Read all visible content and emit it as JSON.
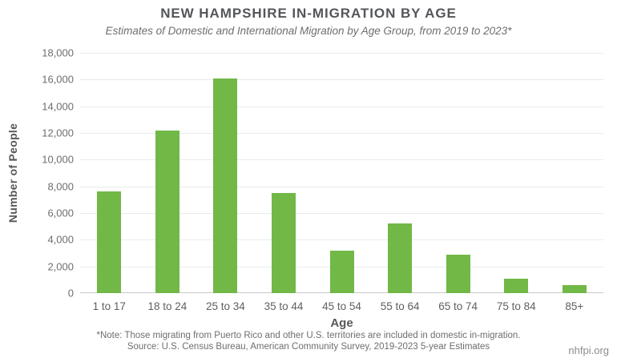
{
  "header": {
    "title": "NEW HAMPSHIRE IN-MIGRATION BY AGE",
    "subtitle": "Estimates of Domestic and International Migration by Age Group, from 2019 to 2023*"
  },
  "chart_data": {
    "type": "bar",
    "title": "NEW HAMPSHIRE IN-MIGRATION BY AGE",
    "subtitle": "Estimates of Domestic and International Migration by Age Group, from 2019 to 2023*",
    "categories": [
      "1 to 17",
      "18 to 24",
      "25 to 34",
      "35 to 44",
      "45 to 54",
      "55 to 64",
      "65 to 74",
      "75 to 84",
      "85+"
    ],
    "values": [
      7600,
      12200,
      16100,
      7500,
      3200,
      5200,
      2900,
      1100,
      620
    ],
    "xlabel": "Age",
    "ylabel": "Number of People",
    "ylim": [
      0,
      18000
    ],
    "ytick_step": 2000,
    "ytick_labels_top_to_bottom": [
      "18,000",
      "16,000",
      "14,000",
      "12,000",
      "10,000",
      "8,000",
      "6,000",
      "4,000",
      "2,000",
      "0"
    ],
    "grid": "horizontal",
    "legend_position": "none",
    "colors": {
      "bar": "#71b847",
      "gridline": "#e9eaeb",
      "baseline": "#c6c8ca",
      "title_text": "#54565a",
      "tick_text": "#6d6e71"
    }
  },
  "footnotes": {
    "note": "*Note: Those migrating from Puerto Rico and other U.S. territories are included in domestic in-migration.",
    "source": "Source: U.S. Census Bureau, American Community Survey, 2019-2023 5-year Estimates",
    "brand": "nhfpi.org"
  }
}
